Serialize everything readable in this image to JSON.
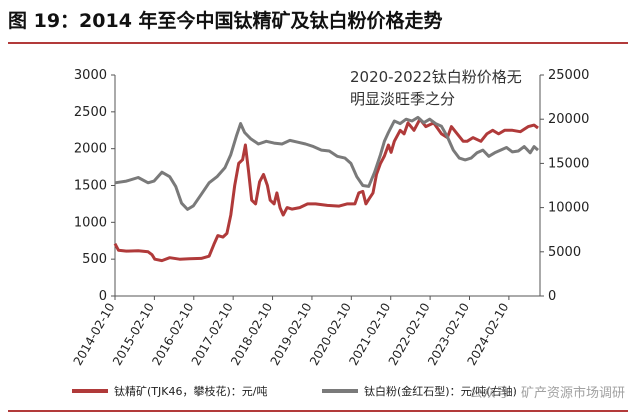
{
  "header": {
    "title": "图 19：2014 年至今中国钛精矿及钛白粉价格走势"
  },
  "watermark": "公众号 · 矿产资源市场调研",
  "chart_data": {
    "type": "line",
    "annotation": [
      "2020-2022钛白粉价格无",
      "明显淡旺季之分"
    ],
    "x_tick_labels": [
      "2014-02-10",
      "2015-02-10",
      "2016-02-10",
      "2017-02-10",
      "2018-02-10",
      "2019-02-10",
      "2020-02-10",
      "2021-02-10",
      "2022-02-10",
      "2023-02-10",
      "2024-02-10"
    ],
    "y_left": {
      "min": 0,
      "max": 3000,
      "ticks": [
        0,
        500,
        1000,
        1500,
        2000,
        2500,
        3000
      ]
    },
    "y_right": {
      "min": 0,
      "max": 25000,
      "ticks": [
        0,
        5000,
        10000,
        15000,
        20000,
        25000
      ]
    },
    "grid": false,
    "legend_position": "bottom",
    "series": [
      {
        "name": "钛精矿(TJK46，攀枝花)：元/吨",
        "axis": "left",
        "color": "#b03a3a",
        "points": [
          [
            2014.11,
            710
          ],
          [
            2014.2,
            620
          ],
          [
            2014.4,
            610
          ],
          [
            2014.7,
            615
          ],
          [
            2014.95,
            600
          ],
          [
            2015.05,
            560
          ],
          [
            2015.12,
            500
          ],
          [
            2015.3,
            480
          ],
          [
            2015.5,
            520
          ],
          [
            2015.75,
            500
          ],
          [
            2016.0,
            505
          ],
          [
            2016.3,
            510
          ],
          [
            2016.5,
            540
          ],
          [
            2016.62,
            700
          ],
          [
            2016.72,
            820
          ],
          [
            2016.85,
            800
          ],
          [
            2016.95,
            850
          ],
          [
            2017.05,
            1100
          ],
          [
            2017.15,
            1500
          ],
          [
            2017.25,
            1800
          ],
          [
            2017.35,
            1850
          ],
          [
            2017.42,
            2050
          ],
          [
            2017.5,
            1700
          ],
          [
            2017.58,
            1300
          ],
          [
            2017.68,
            1250
          ],
          [
            2017.78,
            1550
          ],
          [
            2017.88,
            1650
          ],
          [
            2017.98,
            1500
          ],
          [
            2018.05,
            1300
          ],
          [
            2018.15,
            1250
          ],
          [
            2018.22,
            1400
          ],
          [
            2018.3,
            1200
          ],
          [
            2018.38,
            1100
          ],
          [
            2018.48,
            1200
          ],
          [
            2018.6,
            1180
          ],
          [
            2018.8,
            1200
          ],
          [
            2019.0,
            1250
          ],
          [
            2019.2,
            1250
          ],
          [
            2019.5,
            1230
          ],
          [
            2019.8,
            1220
          ],
          [
            2020.0,
            1250
          ],
          [
            2020.2,
            1250
          ],
          [
            2020.3,
            1400
          ],
          [
            2020.4,
            1420
          ],
          [
            2020.48,
            1250
          ],
          [
            2020.56,
            1320
          ],
          [
            2020.66,
            1400
          ],
          [
            2020.75,
            1650
          ],
          [
            2020.85,
            1800
          ],
          [
            2020.95,
            1900
          ],
          [
            2021.05,
            2050
          ],
          [
            2021.12,
            1950
          ],
          [
            2021.2,
            2100
          ],
          [
            2021.35,
            2250
          ],
          [
            2021.45,
            2200
          ],
          [
            2021.55,
            2350
          ],
          [
            2021.7,
            2250
          ],
          [
            2021.85,
            2400
          ],
          [
            2022.0,
            2300
          ],
          [
            2022.2,
            2350
          ],
          [
            2022.4,
            2200
          ],
          [
            2022.55,
            2150
          ],
          [
            2022.65,
            2300
          ],
          [
            2022.8,
            2200
          ],
          [
            2022.95,
            2100
          ],
          [
            2023.05,
            2100
          ],
          [
            2023.2,
            2150
          ],
          [
            2023.4,
            2100
          ],
          [
            2023.55,
            2200
          ],
          [
            2023.7,
            2250
          ],
          [
            2023.85,
            2200
          ],
          [
            2024.0,
            2250
          ],
          [
            2024.2,
            2250
          ],
          [
            2024.4,
            2230
          ],
          [
            2024.6,
            2300
          ],
          [
            2024.75,
            2320
          ],
          [
            2024.85,
            2280
          ]
        ]
      },
      {
        "name": "钛白粉(金红石型)：元/吨(右轴)",
        "axis": "right",
        "color": "#7a7a7a",
        "points": [
          [
            2014.11,
            12800
          ],
          [
            2014.4,
            13000
          ],
          [
            2014.7,
            13400
          ],
          [
            2014.95,
            12800
          ],
          [
            2015.1,
            13000
          ],
          [
            2015.3,
            14000
          ],
          [
            2015.5,
            13500
          ],
          [
            2015.65,
            12400
          ],
          [
            2015.8,
            10500
          ],
          [
            2015.95,
            9800
          ],
          [
            2016.1,
            10200
          ],
          [
            2016.3,
            11500
          ],
          [
            2016.5,
            12800
          ],
          [
            2016.7,
            13500
          ],
          [
            2016.9,
            14500
          ],
          [
            2017.05,
            16000
          ],
          [
            2017.2,
            18200
          ],
          [
            2017.3,
            19500
          ],
          [
            2017.4,
            18500
          ],
          [
            2017.55,
            17800
          ],
          [
            2017.75,
            17200
          ],
          [
            2017.95,
            17500
          ],
          [
            2018.15,
            17300
          ],
          [
            2018.35,
            17200
          ],
          [
            2018.55,
            17600
          ],
          [
            2018.75,
            17400
          ],
          [
            2018.95,
            17200
          ],
          [
            2019.15,
            16900
          ],
          [
            2019.35,
            16500
          ],
          [
            2019.55,
            16400
          ],
          [
            2019.75,
            15800
          ],
          [
            2019.95,
            15600
          ],
          [
            2020.1,
            15000
          ],
          [
            2020.25,
            13500
          ],
          [
            2020.4,
            12500
          ],
          [
            2020.55,
            12400
          ],
          [
            2020.7,
            14000
          ],
          [
            2020.85,
            16000
          ],
          [
            2020.95,
            17500
          ],
          [
            2021.05,
            18500
          ],
          [
            2021.2,
            19800
          ],
          [
            2021.35,
            19500
          ],
          [
            2021.5,
            20000
          ],
          [
            2021.65,
            19800
          ],
          [
            2021.8,
            20200
          ],
          [
            2021.95,
            19600
          ],
          [
            2022.1,
            20000
          ],
          [
            2022.25,
            19500
          ],
          [
            2022.4,
            19200
          ],
          [
            2022.55,
            18000
          ],
          [
            2022.7,
            16500
          ],
          [
            2022.85,
            15600
          ],
          [
            2023.0,
            15400
          ],
          [
            2023.15,
            15600
          ],
          [
            2023.3,
            16200
          ],
          [
            2023.45,
            16500
          ],
          [
            2023.6,
            15800
          ],
          [
            2023.75,
            16200
          ],
          [
            2023.9,
            16500
          ],
          [
            2024.05,
            16800
          ],
          [
            2024.2,
            16300
          ],
          [
            2024.35,
            16400
          ],
          [
            2024.5,
            16900
          ],
          [
            2024.65,
            16200
          ],
          [
            2024.75,
            16900
          ],
          [
            2024.85,
            16500
          ]
        ]
      }
    ]
  }
}
